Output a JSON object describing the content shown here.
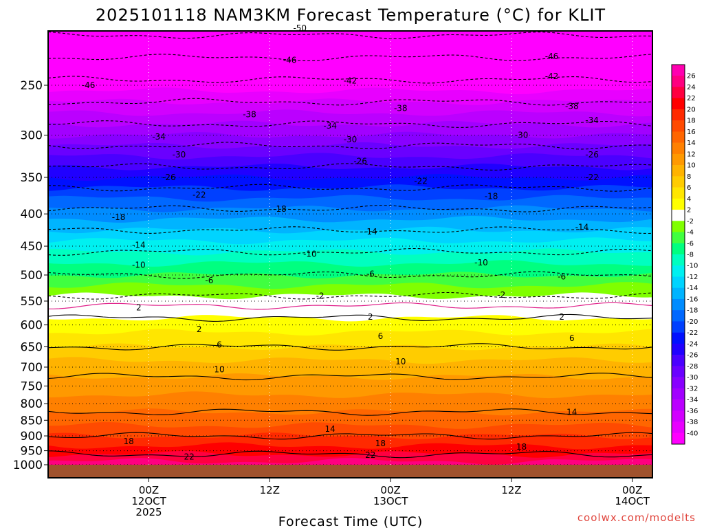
{
  "chart_data": {
    "type": "heatmap",
    "title": "2025101118 NAM3KM Forecast Temperature (°C) for KLIT",
    "xlabel": "Forecast Time (UTC)",
    "ylabel": "",
    "credit": "coolwx.com/modelts",
    "y_scale": "log-pressure",
    "ylim": [
      1000,
      200
    ],
    "xlim_hours": [
      -10,
      50
    ],
    "y_ticks": [
      250,
      300,
      350,
      400,
      450,
      500,
      550,
      600,
      650,
      700,
      750,
      800,
      850,
      900,
      950,
      1000
    ],
    "x_ticks": [
      {
        "hour": 0,
        "lines": [
          "00Z",
          "12OCT",
          "2025"
        ]
      },
      {
        "hour": 12,
        "lines": [
          "12Z"
        ]
      },
      {
        "hour": 24,
        "lines": [
          "00Z",
          "13OCT"
        ]
      },
      {
        "hour": 36,
        "lines": [
          "12Z"
        ]
      },
      {
        "hour": 48,
        "lines": [
          "00Z",
          "14OCT"
        ]
      }
    ],
    "profile": [
      {
        "p": 1000,
        "t": 25
      },
      {
        "p": 950,
        "t": 21
      },
      {
        "p": 900,
        "t": 18
      },
      {
        "p": 850,
        "t": 15
      },
      {
        "p": 800,
        "t": 13
      },
      {
        "p": 750,
        "t": 11
      },
      {
        "p": 700,
        "t": 9
      },
      {
        "p": 650,
        "t": 6
      },
      {
        "p": 600,
        "t": 3
      },
      {
        "p": 570,
        "t": 1
      },
      {
        "p": 550,
        "t": -1
      },
      {
        "p": 500,
        "t": -6
      },
      {
        "p": 450,
        "t": -11
      },
      {
        "p": 400,
        "t": -17
      },
      {
        "p": 350,
        "t": -24
      },
      {
        "p": 300,
        "t": -32
      },
      {
        "p": 250,
        "t": -41
      },
      {
        "p": 200,
        "t": -52
      }
    ],
    "contour_labels": [
      {
        "value": "-50",
        "hour": 15,
        "p": 203
      },
      {
        "value": "-46",
        "hour": -6,
        "p": 250
      },
      {
        "value": "-46",
        "hour": 14,
        "p": 228
      },
      {
        "value": "-46",
        "hour": 40,
        "p": 225
      },
      {
        "value": "-42",
        "hour": 20,
        "p": 246
      },
      {
        "value": "-42",
        "hour": 40,
        "p": 242
      },
      {
        "value": "-38",
        "hour": 10,
        "p": 278
      },
      {
        "value": "-38",
        "hour": 25,
        "p": 272
      },
      {
        "value": "-38",
        "hour": 42,
        "p": 270
      },
      {
        "value": "-34",
        "hour": 1,
        "p": 302
      },
      {
        "value": "-34",
        "hour": 18,
        "p": 290
      },
      {
        "value": "-34",
        "hour": 44,
        "p": 284
      },
      {
        "value": "-30",
        "hour": 3,
        "p": 322
      },
      {
        "value": "-30",
        "hour": 20,
        "p": 305
      },
      {
        "value": "-30",
        "hour": 37,
        "p": 300
      },
      {
        "value": "-26",
        "hour": 2,
        "p": 350
      },
      {
        "value": "-26",
        "hour": 21,
        "p": 330
      },
      {
        "value": "-26",
        "hour": 44,
        "p": 322
      },
      {
        "value": "-22",
        "hour": 5,
        "p": 373
      },
      {
        "value": "-22",
        "hour": 27,
        "p": 355
      },
      {
        "value": "-22",
        "hour": 44,
        "p": 350
      },
      {
        "value": "-18",
        "hour": -3,
        "p": 405
      },
      {
        "value": "-18",
        "hour": 13,
        "p": 393
      },
      {
        "value": "-18",
        "hour": 34,
        "p": 375
      },
      {
        "value": "-14",
        "hour": -1,
        "p": 448
      },
      {
        "value": "-14",
        "hour": 22,
        "p": 427
      },
      {
        "value": "-14",
        "hour": 43,
        "p": 420
      },
      {
        "value": "-10",
        "hour": -1,
        "p": 482
      },
      {
        "value": "-10",
        "hour": 16,
        "p": 463
      },
      {
        "value": "-10",
        "hour": 33,
        "p": 478
      },
      {
        "value": "-6",
        "hour": 6,
        "p": 510
      },
      {
        "value": "-6",
        "hour": 22,
        "p": 498
      },
      {
        "value": "-6",
        "hour": 41,
        "p": 503
      },
      {
        "value": "-2",
        "hour": 17,
        "p": 540
      },
      {
        "value": "-2",
        "hour": 35,
        "p": 538
      },
      {
        "value": "2",
        "hour": -1,
        "p": 563
      },
      {
        "value": "2",
        "hour": 5,
        "p": 610
      },
      {
        "value": "2",
        "hour": 22,
        "p": 583
      },
      {
        "value": "2",
        "hour": 41,
        "p": 583
      },
      {
        "value": "6",
        "hour": 7,
        "p": 645
      },
      {
        "value": "6",
        "hour": 23,
        "p": 625
      },
      {
        "value": "6",
        "hour": 42,
        "p": 630
      },
      {
        "value": "10",
        "hour": 7,
        "p": 706
      },
      {
        "value": "10",
        "hour": 25,
        "p": 686
      },
      {
        "value": "14",
        "hour": 18,
        "p": 878
      },
      {
        "value": "14",
        "hour": 42,
        "p": 825
      },
      {
        "value": "18",
        "hour": -2,
        "p": 918
      },
      {
        "value": "18",
        "hour": 23,
        "p": 925
      },
      {
        "value": "18",
        "hour": 37,
        "p": 937
      },
      {
        "value": "22",
        "hour": 4,
        "p": 972
      },
      {
        "value": "22",
        "hour": 22,
        "p": 965
      }
    ],
    "colorbar": {
      "levels": [
        -40,
        -38,
        -36,
        -34,
        -32,
        -30,
        -28,
        -26,
        -24,
        -22,
        -20,
        -18,
        -16,
        -14,
        -12,
        -10,
        -8,
        -6,
        -4,
        -2,
        2,
        4,
        6,
        8,
        10,
        12,
        14,
        16,
        18,
        20,
        22,
        24,
        26
      ],
      "colors": [
        "#ff00ff",
        "#e800ff",
        "#d200ff",
        "#bb00ff",
        "#a200ff",
        "#8800ff",
        "#6a00ff",
        "#4a00ff",
        "#2000ff",
        "#0010ff",
        "#0040ff",
        "#0068ff",
        "#008cff",
        "#00b4ff",
        "#00d4ff",
        "#00f0f0",
        "#00ffc0",
        "#00ff80",
        "#40ff40",
        "#80ff00",
        "#ffffff",
        "#ffff00",
        "#ffe600",
        "#ffcc00",
        "#ffb300",
        "#ff9900",
        "#ff8000",
        "#ff6600",
        "#ff4a00",
        "#ff2a00",
        "#ff0000",
        "#ff0040",
        "#ff0080",
        "#ff00b0"
      ]
    },
    "ground_color": "#a0522d"
  }
}
